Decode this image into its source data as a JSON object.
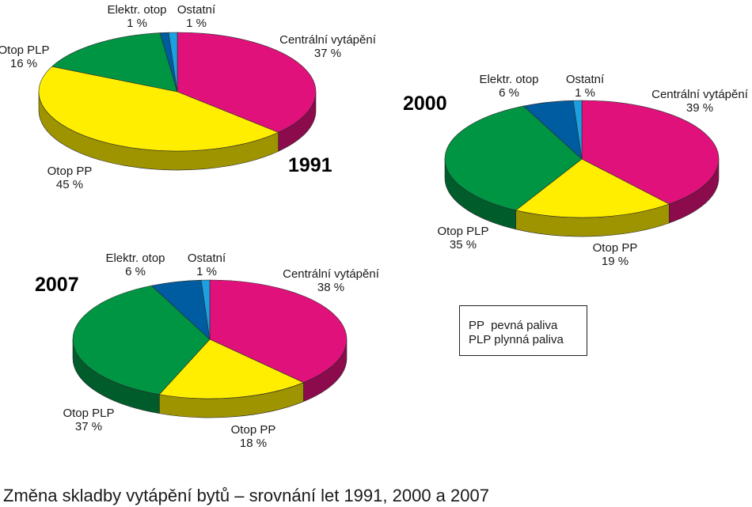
{
  "chart_data": [
    {
      "type": "pie",
      "title": "1991",
      "slices": [
        {
          "label": "Centrální vytápění",
          "value": 37,
          "display": "37 %",
          "color": "#e0117b"
        },
        {
          "label": "Otop PP",
          "value": 45,
          "display": "45 %",
          "color": "#ffee00"
        },
        {
          "label": "Otop PLP",
          "value": 16,
          "display": "16 %",
          "color": "#009543"
        },
        {
          "label": "Elektr. otop",
          "value": 1,
          "display": "1 %",
          "color": "#005ca0"
        },
        {
          "label": "Ostatní",
          "value": 1,
          "display": "1 %",
          "color": "#1ba1e2"
        }
      ]
    },
    {
      "type": "pie",
      "title": "2000",
      "slices": [
        {
          "label": "Centrální vytápění",
          "value": 39,
          "display": "39 %",
          "color": "#e0117b"
        },
        {
          "label": "Otop PP",
          "value": 19,
          "display": "19 %",
          "color": "#ffee00"
        },
        {
          "label": "Otop PLP",
          "value": 35,
          "display": "35 %",
          "color": "#009543"
        },
        {
          "label": "Elektr. otop",
          "value": 6,
          "display": "6 %",
          "color": "#005ca0"
        },
        {
          "label": "Ostatní",
          "value": 1,
          "display": "1 %",
          "color": "#1ba1e2"
        }
      ]
    },
    {
      "type": "pie",
      "title": "2007",
      "slices": [
        {
          "label": "Centrální vytápění",
          "value": 38,
          "display": "38 %",
          "color": "#e0117b"
        },
        {
          "label": "Otop PP",
          "value": 18,
          "display": "18 %",
          "color": "#ffee00"
        },
        {
          "label": "Otop PLP",
          "value": 37,
          "display": "37 %",
          "color": "#009543"
        },
        {
          "label": "Elektr. otop",
          "value": 6,
          "display": "6 %",
          "color": "#005ca0"
        },
        {
          "label": "Ostatní",
          "value": 1,
          "display": "1 %",
          "color": "#1ba1e2"
        }
      ]
    }
  ],
  "legend": {
    "lines": [
      "PP  pevná paliva",
      "PLP plynná paliva"
    ]
  },
  "caption": "Změna skladby vytápění bytů – srovnání let 1991, 2000 a 2007"
}
